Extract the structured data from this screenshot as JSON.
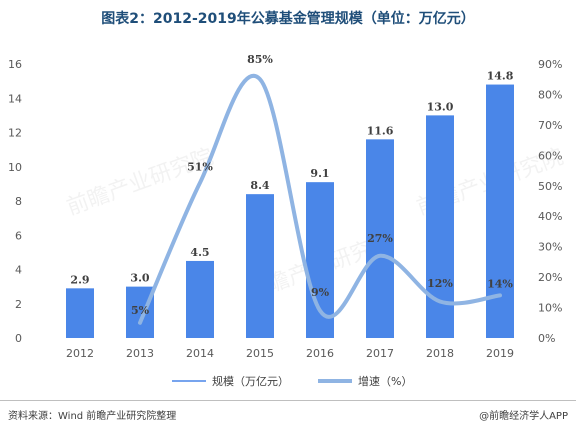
{
  "title": "图表2：2012-2019年公募基金管理规模（单位：万亿元）",
  "source": "资料来源：Wind  前瞻产业研究院整理",
  "brand": "@前瞻经济学人APP",
  "watermark": "前瞻产业研究院",
  "chart_data": {
    "type": "bar",
    "categories": [
      "2012",
      "2013",
      "2014",
      "2015",
      "2016",
      "2017",
      "2018",
      "2019"
    ],
    "series": [
      {
        "name": "规模（万亿元）",
        "type": "bar",
        "axis": "left",
        "values": [
          2.9,
          3.0,
          4.5,
          8.4,
          9.1,
          11.6,
          13.0,
          14.8
        ],
        "labels": [
          "2.9",
          "3.0",
          "4.5",
          "8.4",
          "9.1",
          "11.6",
          "13.0",
          "14.8"
        ],
        "color": "#4a86e8"
      },
      {
        "name": "增速（%）",
        "type": "line",
        "axis": "right",
        "values": [
          null,
          5,
          51,
          85,
          9,
          27,
          12,
          14
        ],
        "labels": [
          "",
          "5%",
          "51%",
          "85%",
          "9%",
          "27%",
          "12%",
          "14%"
        ],
        "color": "#8fb4e3"
      }
    ],
    "left_axis": {
      "min": 0,
      "max": 16,
      "ticks": [
        "0",
        "2",
        "4",
        "6",
        "8",
        "10",
        "12",
        "14",
        "16"
      ]
    },
    "right_axis": {
      "min": 0,
      "max": 90,
      "ticks": [
        "0%",
        "10%",
        "20%",
        "30%",
        "40%",
        "50%",
        "60%",
        "70%",
        "80%",
        "90%"
      ]
    },
    "legend": {
      "position": "bottom",
      "items": [
        "规模（万亿元）",
        "增速（%）"
      ]
    },
    "grid": false
  }
}
